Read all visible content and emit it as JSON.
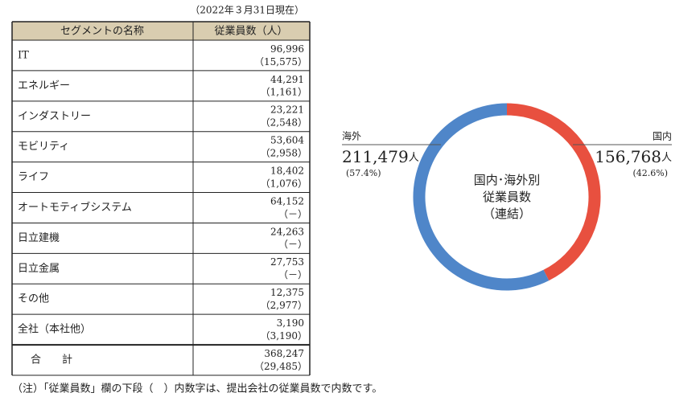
{
  "date_note": "（2022年３月31日現在）",
  "table": {
    "headers": [
      "セグメントの名称",
      "従業員数（人）"
    ],
    "rows": [
      [
        "IT",
        "96,996",
        "（15,575）"
      ],
      [
        "エネルギー",
        "44,291",
        "（1,161）"
      ],
      [
        "インダストリー",
        "23,221",
        "（2,548）"
      ],
      [
        "モビリティ",
        "53,604",
        "（2,958）"
      ],
      [
        "ライフ",
        "18,402",
        "（1,076）"
      ],
      [
        "オートモティブシステム",
        "64,152",
        "（－）"
      ],
      [
        "日立建機",
        "24,263",
        "（－）"
      ],
      [
        "日立金属",
        "27,753",
        "（－）"
      ],
      [
        "その他",
        "12,375",
        "（2,977）"
      ],
      [
        "全社（本社他）",
        "3,190",
        "（3,190）"
      ],
      [
        "合　　計",
        "368,247",
        "（29,485）"
      ]
    ]
  },
  "footnote": "（注）「従業員数」欄の下段（　）内数字は、提出会社の従業員数で内数です。",
  "chart_data": {
    "type": "donut",
    "center_label": [
      "国内･海外別",
      "従業員数",
      "（連結）"
    ],
    "categories": [
      "国内",
      "海外"
    ],
    "counts": [
      "156,768",
      "211,479"
    ],
    "unit": "人",
    "values": [
      42.6,
      57.4
    ],
    "value_labels": [
      "(42.6%)",
      "(57.4%)"
    ],
    "colors": [
      "#e8503f",
      "#4f86c9"
    ]
  }
}
